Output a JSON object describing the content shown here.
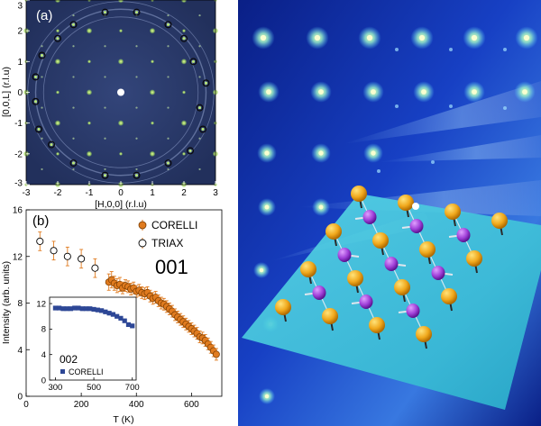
{
  "panel_a": {
    "label": "(a)",
    "xlabel": "[H,0,0] (r.l.u)",
    "ylabel": "[0,0,L] (r.l.u)",
    "xticks": [
      "-3",
      "-2",
      "-1",
      "0",
      "1",
      "2",
      "3"
    ],
    "yticks": [
      "3",
      "2",
      "1",
      "0",
      "-1",
      "-2",
      "-3"
    ],
    "background_color": "#2a3a66",
    "bragg_color": "#c8f06a",
    "circle_points": [
      [
        -0.5,
        2.6
      ],
      [
        0.5,
        2.6
      ],
      [
        -1.5,
        2.2
      ],
      [
        1.5,
        2.2
      ],
      [
        2.0,
        1.75
      ],
      [
        -2.0,
        1.75
      ],
      [
        -2.5,
        1.2
      ],
      [
        2.3,
        1.0
      ],
      [
        -2.7,
        -0.3
      ],
      [
        2.7,
        0.3
      ],
      [
        -2.6,
        -1.2
      ],
      [
        2.6,
        -1.2
      ],
      [
        -2.2,
        -1.7
      ],
      [
        2.2,
        -1.9
      ],
      [
        -1.5,
        -2.3
      ],
      [
        1.5,
        -2.3
      ],
      [
        -0.5,
        -2.7
      ],
      [
        0.5,
        -2.7
      ],
      [
        -2.7,
        0.5
      ],
      [
        2.5,
        -0.5
      ]
    ]
  },
  "chart_data": [
    {
      "type": "scatter",
      "label": "(b)",
      "xlabel": "T (K)",
      "ylabel": "Intensity (arb. units)",
      "xlim": [
        0,
        710
      ],
      "ylim": [
        0,
        16
      ],
      "xticks": [
        "0",
        "200",
        "400",
        "600"
      ],
      "yticks": [
        "0",
        "4",
        "8",
        "12",
        "16"
      ],
      "legend": [
        "CORELLI",
        "TRIAX"
      ],
      "annotation": "001",
      "series": [
        {
          "name": "TRIAX",
          "marker": "open-circle",
          "color": "#e07b1f",
          "x": [
            50,
            100,
            150,
            200,
            250
          ],
          "y": [
            13.3,
            12.5,
            12.0,
            11.8,
            11.0
          ],
          "err": [
            0.8,
            0.8,
            0.8,
            0.8,
            0.8
          ]
        },
        {
          "name": "CORELLI",
          "marker": "filled-circle",
          "color": "#e07b1f",
          "x": [
            300,
            310,
            320,
            330,
            340,
            350,
            360,
            370,
            380,
            390,
            400,
            410,
            420,
            430,
            440,
            450,
            460,
            470,
            480,
            490,
            500,
            510,
            520,
            530,
            540,
            550,
            560,
            570,
            580,
            590,
            600,
            610,
            620,
            630,
            640,
            650,
            660,
            670,
            680,
            690
          ],
          "y": [
            9.8,
            10.0,
            9.7,
            9.5,
            9.6,
            9.3,
            9.5,
            9.4,
            9.2,
            9.3,
            9.0,
            9.1,
            8.9,
            8.8,
            8.9,
            8.6,
            8.4,
            8.5,
            8.2,
            8.0,
            7.9,
            7.7,
            7.5,
            7.3,
            7.0,
            6.8,
            6.6,
            6.4,
            6.2,
            6.0,
            5.8,
            5.6,
            5.4,
            5.1,
            5.0,
            4.8,
            4.5,
            4.2,
            3.9,
            3.6
          ],
          "err": [
            0.7,
            0.7,
            0.6,
            0.6,
            0.6,
            0.5,
            0.5,
            0.5,
            0.5,
            0.5,
            0.5,
            0.5,
            0.5,
            0.5,
            0.5,
            0.5,
            0.5,
            0.5,
            0.5,
            0.5,
            0.5,
            0.5,
            0.5,
            0.5,
            0.5,
            0.5,
            0.5,
            0.5,
            0.5,
            0.5,
            0.5,
            0.5,
            0.5,
            0.5,
            0.5,
            0.5,
            0.5,
            0.5,
            0.5,
            0.5
          ]
        }
      ]
    },
    {
      "type": "scatter",
      "xlim": [
        270,
        720
      ],
      "ylim": [
        0,
        13
      ],
      "xticks": [
        "300",
        "500",
        "700"
      ],
      "yticks": [
        "0",
        "4",
        "8",
        "12"
      ],
      "legend": [
        "CORELLI"
      ],
      "annotation": "002",
      "series": [
        {
          "name": "CORELLI",
          "marker": "filled-square",
          "color": "#2d4796",
          "x": [
            300,
            320,
            340,
            360,
            380,
            400,
            420,
            440,
            460,
            480,
            500,
            520,
            540,
            560,
            580,
            600,
            620,
            640,
            660,
            680,
            700
          ],
          "y": [
            11.3,
            11.3,
            11.2,
            11.2,
            11.2,
            11.3,
            11.3,
            11.2,
            11.2,
            11.2,
            11.1,
            11.0,
            10.9,
            10.7,
            10.5,
            10.3,
            10.0,
            9.7,
            9.3,
            8.7,
            8.5
          ]
        }
      ]
    }
  ],
  "illustration": {
    "background_color": "#1433a8",
    "plane_color": "#37c3d8",
    "orange_atom_color": "#f0a81c",
    "purple_atom_color": "#a040d8",
    "spin_arrow_color": "#333333"
  }
}
